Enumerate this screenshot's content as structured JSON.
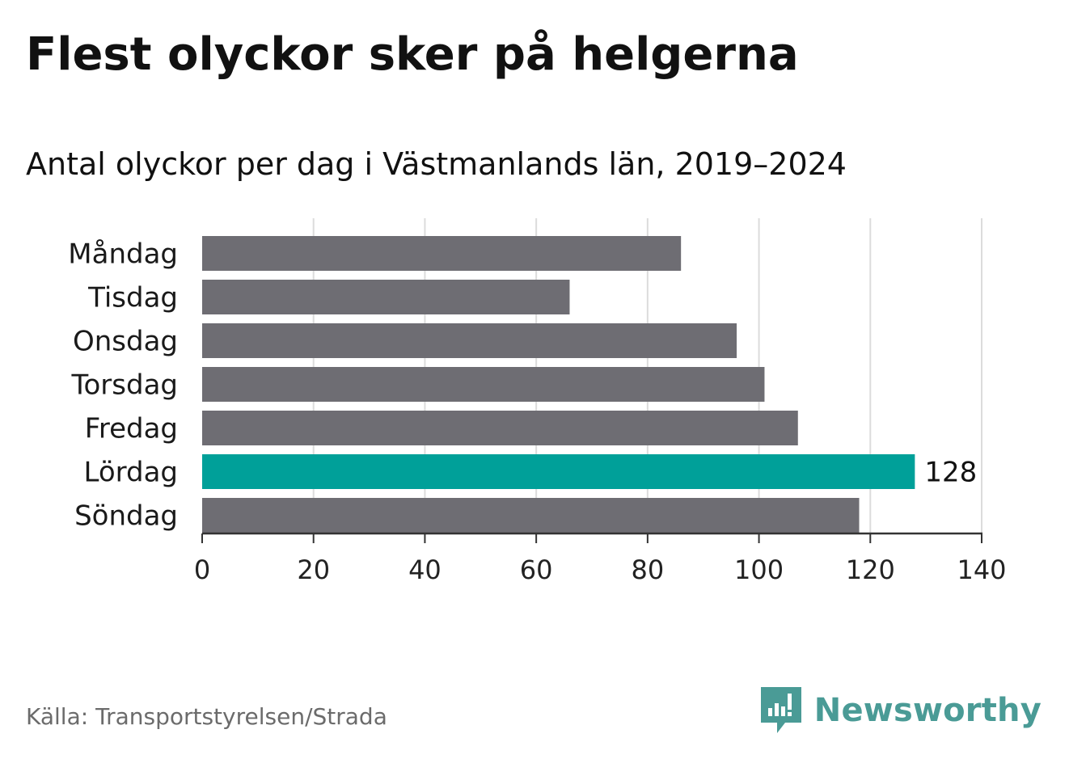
{
  "title": "Flest olyckor sker på helgerna",
  "subtitle": "Antal olyckor per dag i Västmanlands län, 2019–2024",
  "source": "Källa: Transportstyrelsen/Strada",
  "brand": {
    "name": "Newsworthy",
    "icon": "newsworthy-logo-icon",
    "color": "#4a9b96"
  },
  "colors": {
    "bar": "#6e6d73",
    "highlight": "#00a099",
    "grid": "#dcdcdc",
    "axis": "#333333"
  },
  "chart_data": {
    "type": "bar",
    "orientation": "horizontal",
    "categories": [
      "Måndag",
      "Tisdag",
      "Onsdag",
      "Torsdag",
      "Fredag",
      "Lördag",
      "Söndag"
    ],
    "values": [
      86,
      66,
      96,
      101,
      107,
      128,
      118
    ],
    "highlight_index": 5,
    "data_labels": [
      {
        "category": "Lördag",
        "text": "128"
      }
    ],
    "xlim": [
      0,
      140
    ],
    "xticks": [
      "0",
      "20",
      "40",
      "60",
      "80",
      "100",
      "120",
      "140"
    ],
    "xlabel": "",
    "ylabel": "",
    "grid": true,
    "legend": "none"
  }
}
